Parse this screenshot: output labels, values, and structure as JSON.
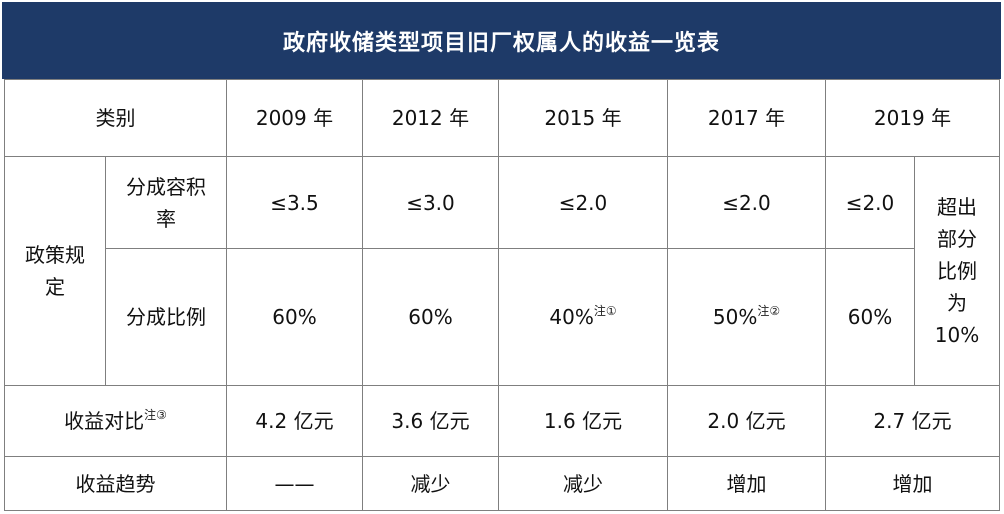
{
  "title": "政府收储类型项目旧厂权属人的收益一览表",
  "header": {
    "category": "类别",
    "years": [
      "2009 年",
      "2012 年",
      "2015 年",
      "2017 年",
      "2019 年"
    ]
  },
  "policy": {
    "label": "政策规定",
    "far_label": "分成容积率",
    "far_values": [
      "≤3.5",
      "≤3.0",
      "≤2.0",
      "≤2.0",
      "≤2.0"
    ],
    "ratio_label": "分成比例",
    "ratio_values": [
      "60%",
      "60%",
      "40%",
      "50%",
      "60%"
    ],
    "ratio_notes": [
      "",
      "",
      "注①",
      "注②",
      ""
    ],
    "excess_note": "超出部分比例为10%"
  },
  "income": {
    "label": "收益对比",
    "note": "注③",
    "values": [
      "4.2 亿元",
      "3.6 亿元",
      "1.6 亿元",
      "2.0 亿元",
      "2.7 亿元"
    ]
  },
  "trend": {
    "label": "收益趋势",
    "values": [
      "——",
      "减少",
      "减少",
      "增加",
      "增加"
    ]
  }
}
